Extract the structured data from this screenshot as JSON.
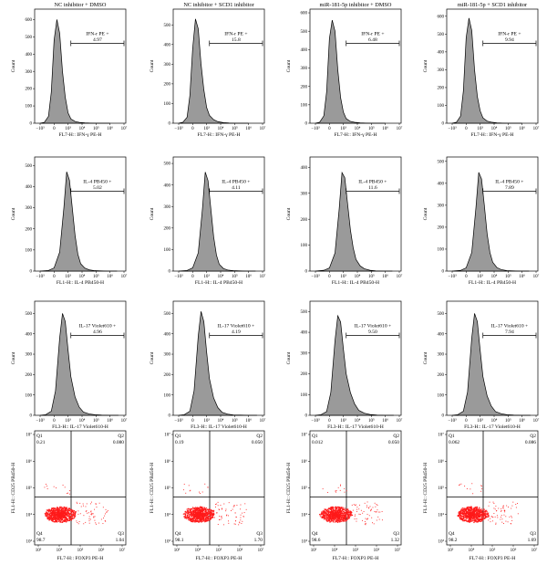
{
  "chart_data": {
    "column_titles": [
      "NC inhibitor + DMSO",
      "NC inhibitor + SCD1 inhibitor",
      "miR-181-5p inhibitor + DMSO",
      "miR-181-5p + SCD1 inhibitor"
    ],
    "rows": [
      {
        "type": "area",
        "marker": "IFN-γ",
        "xlabel": "FL7-H:: IFN-γ PE-H",
        "ylabel": "Count",
        "gate_label": "IFN-r PE +",
        "x_ticks": [
          "−10³",
          "0",
          "10³",
          "10⁴",
          "10⁵",
          "10⁶",
          "10⁷"
        ],
        "panels": [
          {
            "gate_value": "4.97",
            "y_ticks": [
              "0",
              "100",
              "200",
              "300",
              "400",
              "500",
              "600"
            ],
            "ymax": 660
          },
          {
            "gate_value": "15.8",
            "y_ticks": [
              "0",
              "100",
              "200",
              "300",
              "400",
              "500"
            ],
            "ymax": 580
          },
          {
            "gate_value": "6.48",
            "y_ticks": [
              "0",
              "100",
              "200",
              "300",
              "400",
              "500",
              "600"
            ],
            "ymax": 620
          },
          {
            "gate_value": "9.94",
            "y_ticks": [
              "0",
              "100",
              "200",
              "300",
              "400",
              "500",
              "600"
            ],
            "ymax": 640
          }
        ],
        "histograms": [
          {
            "series": [
              {
                "name": "",
                "x": [
                  0.0,
                  0.3,
                  0.6,
                  0.8,
                  1.0,
                  1.2,
                  1.4,
                  1.6,
                  1.8,
                  2.0,
                  2.2,
                  2.5,
                  2.8,
                  3.2,
                  3.6,
                  4.2,
                  5.0
                ],
                "y": [
                  0,
                  5,
                  40,
                  180,
                  480,
                  600,
                  520,
                  300,
                  150,
                  60,
                  25,
                  10,
                  5,
                  2,
                  1,
                  0,
                  0
                ]
              }
            ]
          },
          {
            "series": [
              {
                "name": "",
                "x": [
                  0.0,
                  0.3,
                  0.6,
                  0.8,
                  1.0,
                  1.2,
                  1.4,
                  1.6,
                  1.8,
                  2.0,
                  2.2,
                  2.5,
                  2.8,
                  3.2,
                  3.6,
                  4.2,
                  5.0
                ],
                "y": [
                  0,
                  5,
                  30,
                  140,
                  380,
                  530,
                  480,
                  300,
                  170,
                  80,
                  40,
                  18,
                  8,
                  3,
                  1,
                  0,
                  0
                ]
              }
            ]
          },
          {
            "series": [
              {
                "name": "",
                "x": [
                  0.0,
                  0.3,
                  0.6,
                  0.8,
                  1.0,
                  1.2,
                  1.4,
                  1.6,
                  1.8,
                  2.0,
                  2.2,
                  2.5,
                  2.8,
                  3.2,
                  3.6,
                  4.2,
                  5.0
                ],
                "y": [
                  0,
                  5,
                  40,
                  170,
                  460,
                  560,
                  500,
                  290,
                  140,
                  60,
                  25,
                  10,
                  5,
                  2,
                  1,
                  0,
                  0
                ]
              }
            ]
          },
          {
            "series": [
              {
                "name": "",
                "x": [
                  0.0,
                  0.3,
                  0.6,
                  0.8,
                  1.0,
                  1.2,
                  1.4,
                  1.6,
                  1.8,
                  2.0,
                  2.2,
                  2.5,
                  2.8,
                  3.2,
                  3.6,
                  4.2,
                  5.0
                ],
                "y": [
                  0,
                  5,
                  40,
                  180,
                  480,
                  590,
                  520,
                  300,
                  150,
                  70,
                  30,
                  12,
                  6,
                  2,
                  1,
                  0,
                  0
                ]
              }
            ]
          }
        ]
      },
      {
        "type": "area",
        "marker": "IL-4",
        "xlabel": "FL1-H:: IL-4 PB450-H",
        "ylabel": "Count",
        "gate_label": "IL-4 PB450 +",
        "x_ticks": [
          "−10³",
          "0",
          "10³",
          "10⁴",
          "10⁵",
          "10⁶",
          "10⁷"
        ],
        "panels": [
          {
            "gate_value": "5.02",
            "y_ticks": [
              "0",
              "100",
              "200",
              "300",
              "400",
              "500"
            ],
            "ymax": 540
          },
          {
            "gate_value": "4.11",
            "y_ticks": [
              "0",
              "100",
              "200",
              "300",
              "400",
              "500"
            ],
            "ymax": 530
          },
          {
            "gate_value": "11.6",
            "y_ticks": [
              "0",
              "100",
              "200",
              "300",
              "400"
            ],
            "ymax": 440
          },
          {
            "gate_value": "7.89",
            "y_ticks": [
              "0",
              "100",
              "200",
              "300",
              "400",
              "500"
            ],
            "ymax": 520
          }
        ],
        "histograms": [
          {
            "series": [
              {
                "name": "",
                "x": [
                  0.0,
                  0.6,
                  1.0,
                  1.4,
                  1.7,
                  1.9,
                  2.1,
                  2.3,
                  2.5,
                  2.7,
                  2.9,
                  3.2,
                  3.5,
                  3.9,
                  4.3,
                  4.8,
                  5.5
                ],
                "y": [
                  0,
                  3,
                  15,
                  90,
                  300,
                  470,
                  430,
                  300,
                  170,
                  80,
                  35,
                  14,
                  6,
                  2,
                  1,
                  0,
                  0
                ]
              }
            ]
          },
          {
            "series": [
              {
                "name": "",
                "x": [
                  0.0,
                  0.6,
                  1.0,
                  1.4,
                  1.7,
                  1.9,
                  2.1,
                  2.3,
                  2.5,
                  2.7,
                  2.9,
                  3.2,
                  3.5,
                  3.9,
                  4.3,
                  4.8,
                  5.5
                ],
                "y": [
                  0,
                  3,
                  15,
                  85,
                  290,
                  460,
                  420,
                  290,
                  160,
                  75,
                  32,
                  12,
                  5,
                  2,
                  1,
                  0,
                  0
                ]
              }
            ]
          },
          {
            "series": [
              {
                "name": "",
                "x": [
                  0.0,
                  0.6,
                  1.0,
                  1.4,
                  1.7,
                  1.9,
                  2.1,
                  2.3,
                  2.5,
                  2.7,
                  2.9,
                  3.2,
                  3.5,
                  3.9,
                  4.3,
                  4.8,
                  5.5
                ],
                "y": [
                  0,
                  3,
                  12,
                  70,
                  240,
                  380,
                  360,
                  260,
                  160,
                  90,
                  45,
                  20,
                  9,
                  3,
                  1,
                  0,
                  0
                ]
              }
            ]
          },
          {
            "series": [
              {
                "name": "",
                "x": [
                  0.0,
                  0.6,
                  1.0,
                  1.4,
                  1.7,
                  1.9,
                  2.1,
                  2.3,
                  2.5,
                  2.7,
                  2.9,
                  3.2,
                  3.5,
                  3.9,
                  4.3,
                  4.8,
                  5.5
                ],
                "y": [
                  0,
                  3,
                  15,
                  85,
                  290,
                  450,
                  420,
                  300,
                  170,
                  85,
                  40,
                  16,
                  7,
                  2,
                  1,
                  0,
                  0
                ]
              }
            ]
          }
        ]
      },
      {
        "type": "area",
        "marker": "IL-17",
        "xlabel": "FL3-H:: IL-17 Violet610-H",
        "ylabel": "Count",
        "gate_label": "IL-17 Violet610 +",
        "x_ticks": [
          "−10³",
          "0",
          "10³",
          "10⁴",
          "10⁵",
          "10⁶",
          "10⁷"
        ],
        "panels": [
          {
            "gate_value": "4.96",
            "y_ticks": [
              "0",
              "100",
              "200",
              "300",
              "400",
              "500"
            ],
            "ymax": 560
          },
          {
            "gate_value": "4.19",
            "y_ticks": [
              "0",
              "100",
              "200",
              "300",
              "400",
              "500"
            ],
            "ymax": 560
          },
          {
            "gate_value": "9.50",
            "y_ticks": [
              "0",
              "100",
              "200",
              "300",
              "400",
              "500"
            ],
            "ymax": 550
          },
          {
            "gate_value": "7.94",
            "y_ticks": [
              "0",
              "100",
              "200",
              "300",
              "400",
              "500"
            ],
            "ymax": 560
          }
        ],
        "histograms": [
          {
            "series": [
              {
                "name": "",
                "x": [
                  0.0,
                  0.4,
                  0.8,
                  1.1,
                  1.4,
                  1.6,
                  1.8,
                  2.0,
                  2.2,
                  2.5,
                  2.8,
                  3.1,
                  3.5,
                  3.9,
                  4.4,
                  5.0,
                  5.6
                ],
                "y": [
                  0,
                  3,
                  20,
                  120,
                  380,
                  500,
                  460,
                  320,
                  190,
                  90,
                  40,
                  16,
                  7,
                  3,
                  1,
                  0,
                  0
                ]
              }
            ]
          },
          {
            "series": [
              {
                "name": "",
                "x": [
                  0.0,
                  0.4,
                  0.8,
                  1.1,
                  1.4,
                  1.6,
                  1.8,
                  2.0,
                  2.2,
                  2.5,
                  2.8,
                  3.1,
                  3.5,
                  3.9,
                  4.4,
                  5.0,
                  5.6
                ],
                "y": [
                  0,
                  3,
                  20,
                  120,
                  390,
                  510,
                  460,
                  310,
                  180,
                  85,
                  38,
                  15,
                  6,
                  2,
                  1,
                  0,
                  0
                ]
              }
            ]
          },
          {
            "series": [
              {
                "name": "",
                "x": [
                  0.0,
                  0.4,
                  0.8,
                  1.1,
                  1.4,
                  1.6,
                  1.8,
                  2.0,
                  2.2,
                  2.5,
                  2.8,
                  3.1,
                  3.5,
                  3.9,
                  4.4,
                  5.0,
                  5.6
                ],
                "y": [
                  0,
                  3,
                  18,
                  110,
                  360,
                  480,
                  450,
                  320,
                  200,
                  110,
                  55,
                  24,
                  10,
                  4,
                  1,
                  0,
                  0
                ]
              }
            ]
          },
          {
            "series": [
              {
                "name": "",
                "x": [
                  0.0,
                  0.4,
                  0.8,
                  1.1,
                  1.4,
                  1.6,
                  1.8,
                  2.0,
                  2.2,
                  2.5,
                  2.8,
                  3.1,
                  3.5,
                  3.9,
                  4.4,
                  5.0,
                  5.6
                ],
                "y": [
                  0,
                  3,
                  20,
                  115,
                  380,
                  500,
                  460,
                  320,
                  190,
                  95,
                  45,
                  18,
                  8,
                  3,
                  1,
                  0,
                  0
                ]
              }
            ]
          }
        ]
      },
      {
        "type": "scatter",
        "xlabel": "FL7-H:: FOXP3 PE-H",
        "ylabel": "FL1-H:: CD25 PB450-H",
        "x_ticks": [
          "10³",
          "10⁴",
          "10⁵",
          "10⁶",
          "10⁷"
        ],
        "y_ticks": [
          "10³",
          "10⁴",
          "10⁵",
          "10⁶",
          "10⁷"
        ],
        "panels": [
          {
            "quadrants": {
              "Q1": "0.21",
              "Q2": "0.080",
              "Q3": "1.04",
              "Q4": "98.7"
            }
          },
          {
            "quadrants": {
              "Q1": "0.19",
              "Q2": "0.050",
              "Q3": "1.70",
              "Q4": "98.1"
            }
          },
          {
            "quadrants": {
              "Q1": "0.012",
              "Q2": "0.050",
              "Q3": "1.32",
              "Q4": "98.6"
            }
          },
          {
            "quadrants": {
              "Q1": "0.062",
              "Q2": "0.086",
              "Q3": "1.69",
              "Q4": "98.2"
            }
          }
        ]
      }
    ]
  }
}
